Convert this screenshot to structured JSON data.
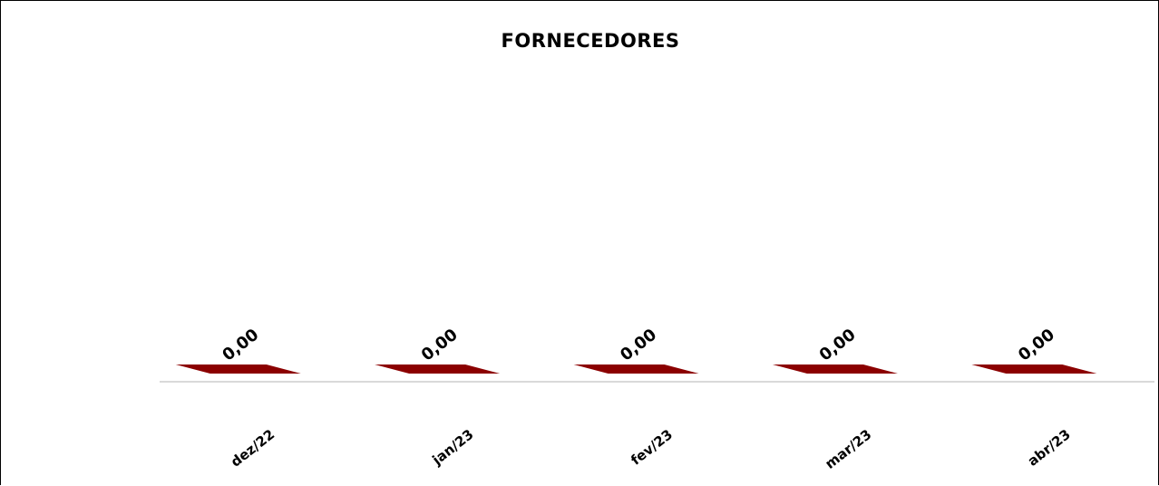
{
  "chart_data": {
    "type": "bar",
    "title": "FORNECEDORES",
    "categories": [
      "dez/22",
      "jan/23",
      "fev/23",
      "mar/23",
      "abr/23"
    ],
    "series": [
      {
        "values": [
          0,
          0,
          0,
          0,
          0
        ],
        "data_labels": [
          "0,00",
          "0,00",
          "0,00",
          "0,00",
          "0,00"
        ],
        "color": "#8b0000"
      }
    ],
    "xlabel": "",
    "ylabel": "",
    "grid": false,
    "legend": "none",
    "style": "3d-bar"
  }
}
